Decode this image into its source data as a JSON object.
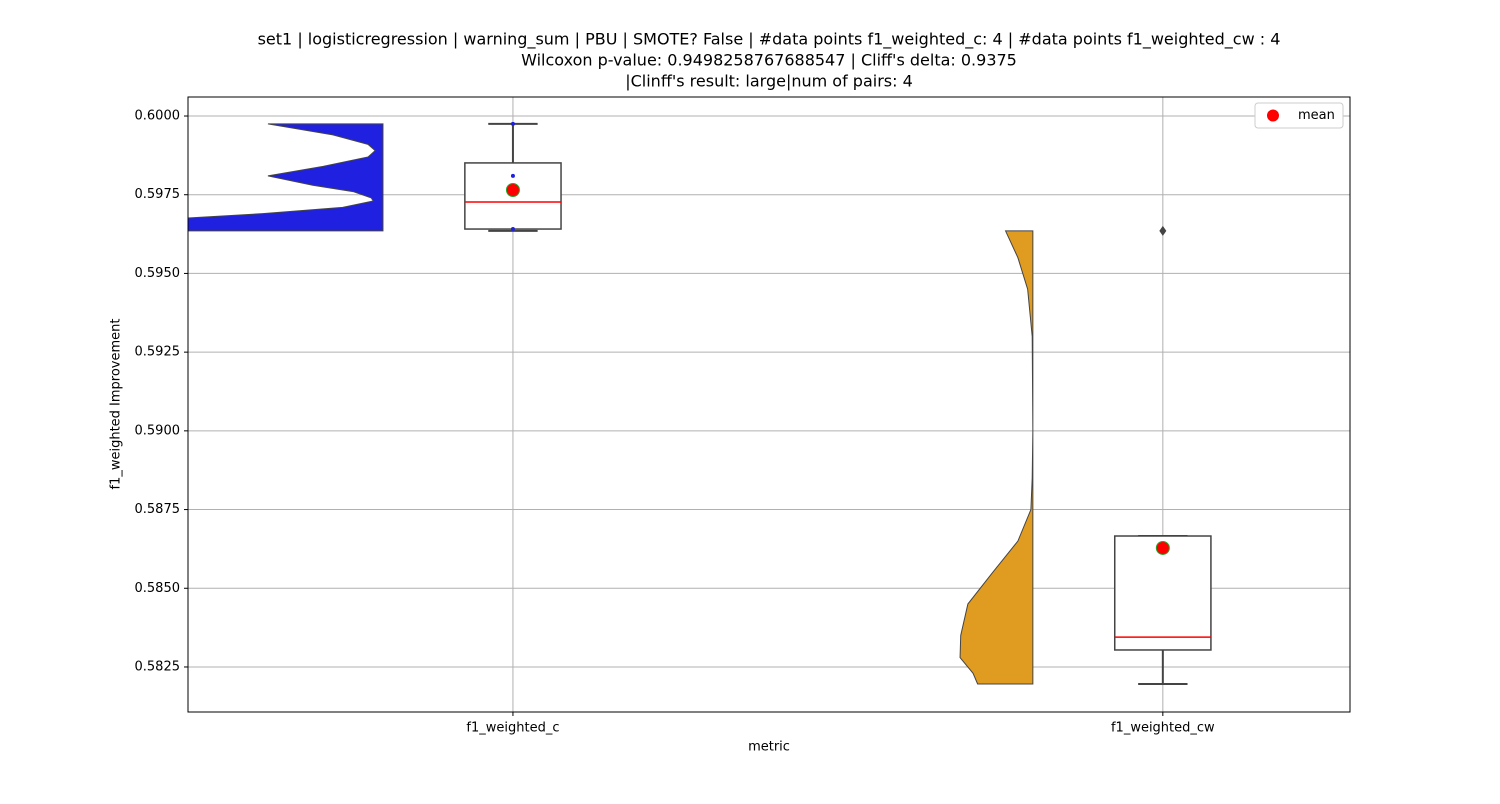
{
  "chart_data": {
    "type": "violin_box",
    "title": [
      "set1 | logisticregression | warning_sum | PBU | SMOTE? False | #data points f1_weighted_c: 4 | #data points f1_weighted_cw : 4",
      "Wilcoxon p-value: 0.9498258767688547 | Cliff's delta: 0.9375",
      "|Clinff's result: large|num of pairs: 4"
    ],
    "xlabel": "metric",
    "ylabel": "f1_weighted Improvement",
    "categories": [
      "f1_weighted_c",
      "f1_weighted_cw"
    ],
    "xlim": [
      -0.5,
      1.288
    ],
    "ylim": [
      0.58107,
      0.600604
    ],
    "yticks": [
      0.5825,
      {
        "value": 0.585,
        "label": "0.5850"
      },
      0.5875,
      {
        "value": 0.59,
        "label": "0.5900"
      },
      0.5925,
      {
        "value": 0.595,
        "label": "0.5950"
      },
      0.5975,
      {
        "value": 0.6,
        "label": "0.6000"
      }
    ],
    "grid": true,
    "legend": {
      "label": "mean",
      "loc": "upper right"
    },
    "mean_color": "#ff0000",
    "mean_edge": "#2ca02c",
    "median_color": "#ff0000",
    "box_edge": "#444444",
    "groups": [
      {
        "violin_color": "#2020e0",
        "violin_y": [
          0.59975,
          0.5994,
          0.5991,
          0.5989,
          0.5987,
          0.5984,
          0.5981,
          0.5978,
          0.5976,
          0.5974,
          0.5973,
          0.5971,
          0.5969,
          0.5967,
          0.5965,
          0.59635
        ],
        "violin_width": [
          0.177,
          0.077,
          0.023,
          0.012,
          0.023,
          0.092,
          0.177,
          0.108,
          0.046,
          0.018,
          0.015,
          0.062,
          0.185,
          0.35,
          0.5,
          0.55
        ],
        "box": {
          "whislo": 0.59635,
          "q1": 0.59641,
          "med": 0.59727,
          "q3": 0.59851,
          "whishi": 0.59975
        },
        "mean": 0.59765,
        "points": [
          0.59975,
          0.5981,
          0.59641
        ],
        "point_color": "#2020e0"
      },
      {
        "violin_color": "#e09c20",
        "violin_y": [
          0.59635,
          0.5955,
          0.5945,
          0.593,
          0.59,
          0.5885,
          0.5875,
          0.5865,
          0.5855,
          0.5845,
          0.5835,
          0.5828,
          0.5823,
          0.58196
        ],
        "violin_width": [
          0.042,
          0.023,
          0.008,
          0.001,
          0.0,
          0.001,
          0.003,
          0.023,
          0.062,
          0.1,
          0.111,
          0.112,
          0.092,
          0.085
        ],
        "box": {
          "whislo": 0.58196,
          "q1": 0.58304,
          "med": 0.58345,
          "q3": 0.58666,
          "whishi": 0.58666
        },
        "mean": 0.58628,
        "outliers": [
          0.59635
        ]
      }
    ]
  }
}
